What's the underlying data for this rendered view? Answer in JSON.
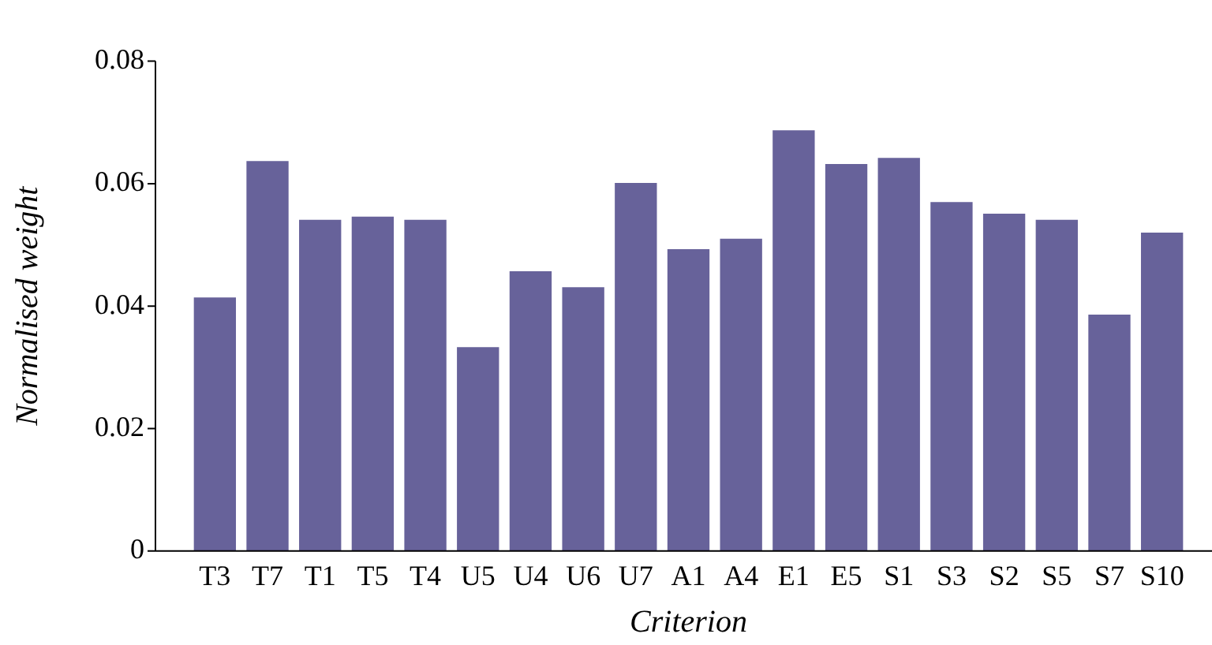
{
  "chart_data": {
    "type": "bar",
    "xlabel": "Criterion",
    "ylabel": "Normalised weight",
    "categories": [
      "T3",
      "T7",
      "T1",
      "T5",
      "T4",
      "U5",
      "U4",
      "U6",
      "U7",
      "A1",
      "A4",
      "E1",
      "E5",
      "S1",
      "S3",
      "S2",
      "S5",
      "S7",
      "S10"
    ],
    "values": [
      0.0414,
      0.0637,
      0.0541,
      0.0546,
      0.0541,
      0.0333,
      0.0457,
      0.0431,
      0.0601,
      0.0493,
      0.051,
      0.0687,
      0.0632,
      0.0642,
      0.057,
      0.0551,
      0.0541,
      0.0386,
      0.052
    ],
    "color": "#67629a",
    "ylim": [
      0,
      0.08
    ],
    "yticks": [
      0,
      0.02,
      0.04,
      0.06,
      0.08
    ],
    "grid": false,
    "legend": false
  }
}
